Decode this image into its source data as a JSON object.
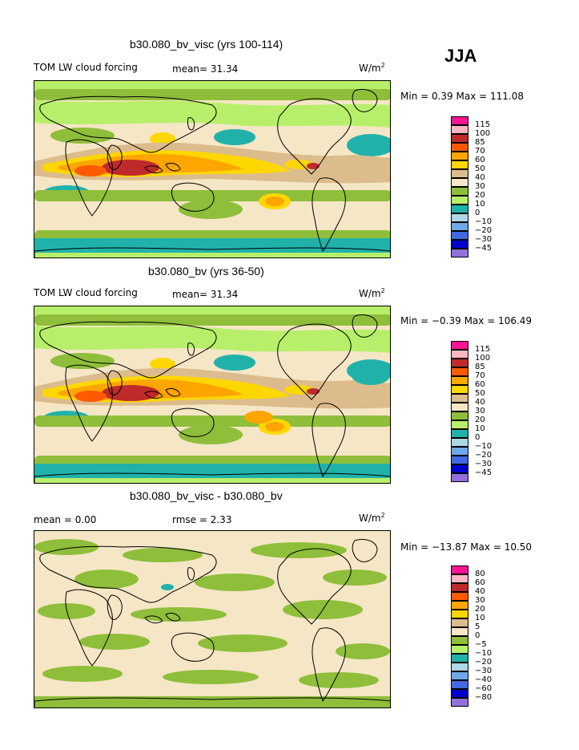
{
  "season": "JJA",
  "colors": {
    "c115": "#ff1493",
    "c100": "#ffb6c1",
    "c85": "#c02a2a",
    "c70": "#ff5a00",
    "c60": "#ffa500",
    "c50": "#ffd700",
    "c40": "#dcbc8c",
    "c30": "#f5e6c6",
    "c20": "#8fbe3a",
    "c10": "#b8ef6a",
    "c0": "#20b2aa",
    "m10": "#add8e6",
    "m20": "#6fa8e8",
    "m30": "#4169e1",
    "m45": "#0000cd",
    "mlast": "#9370db"
  },
  "chart_data": [
    {
      "type": "heatmap",
      "title": "b30.080_bv_visc (yrs 100-114)",
      "left_label": "TOM LW cloud forcing",
      "stat_label": "mean=  31.34",
      "units": "W/m",
      "units_sup": "2",
      "minmax": "Min =   0.39 Max = 111.08",
      "min": 0.39,
      "max": 111.08,
      "mean": 31.34,
      "levels": [
        "115",
        "100",
        "85",
        "70",
        "60",
        "50",
        "40",
        "30",
        "20",
        "10",
        "0",
        "−10",
        "−20",
        "−30",
        "−45"
      ]
    },
    {
      "type": "heatmap",
      "title": "b30.080_bv (yrs 36-50)",
      "left_label": "TOM LW cloud forcing",
      "stat_label": "mean=  31.34",
      "units": "W/m",
      "units_sup": "2",
      "minmax": "Min =  −0.39 Max = 106.49",
      "min": -0.39,
      "max": 106.49,
      "mean": 31.34,
      "levels": [
        "115",
        "100",
        "85",
        "70",
        "60",
        "50",
        "40",
        "30",
        "20",
        "10",
        "0",
        "−10",
        "−20",
        "−30",
        "−45"
      ]
    },
    {
      "type": "heatmap",
      "title": "b30.080_bv_visc - b30.080_bv",
      "left_label": "mean =   0.00",
      "stat_label": "rmse =   2.33",
      "units": "W/m",
      "units_sup": "2",
      "minmax": "Min = −13.87 Max =  10.50",
      "min": -13.87,
      "max": 10.5,
      "mean": 0.0,
      "rmse": 2.33,
      "levels": [
        "80",
        "60",
        "40",
        "30",
        "20",
        "10",
        "5",
        "0",
        "−5",
        "−10",
        "−20",
        "−30",
        "−40",
        "−60",
        "−80"
      ]
    }
  ]
}
